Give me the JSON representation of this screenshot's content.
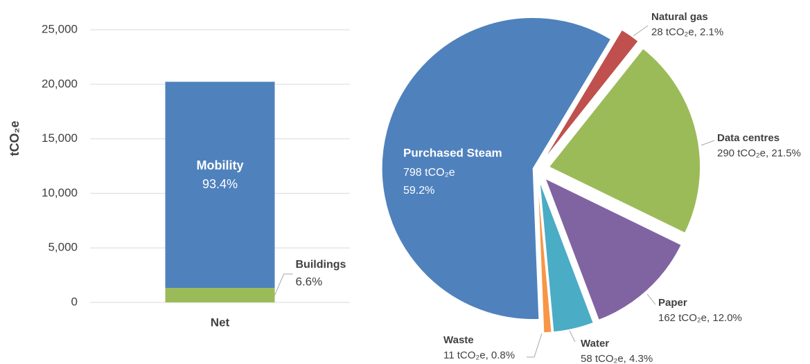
{
  "chart_data": [
    {
      "type": "bar",
      "stacked": true,
      "ylabel": "tCO₂e",
      "categories": [
        "Net"
      ],
      "series": [
        {
          "name": "Buildings",
          "color": "#9bbb59",
          "values": [
            1330
          ],
          "value_labels": [
            "6.6%"
          ]
        },
        {
          "name": "Mobility",
          "color": "#4f81bd",
          "values": [
            18900
          ],
          "value_labels": [
            "93.4%"
          ]
        }
      ],
      "ylim": [
        0,
        25000
      ],
      "yticks": [
        0,
        {
          "value": 5000,
          "label": "5,000"
        },
        {
          "value": 10000,
          "label": "10,000"
        },
        {
          "value": 15000,
          "label": "15,000"
        },
        {
          "value": 20000,
          "label": "20,000"
        },
        {
          "value": 25000,
          "label": "25,000"
        }
      ],
      "grid": true
    },
    {
      "type": "pie",
      "categories": [
        "Purchased Steam",
        "Natural gas",
        "Data centres",
        "Paper",
        "Water",
        "Waste"
      ],
      "values": [
        798,
        28,
        290,
        162,
        58,
        11
      ],
      "value_labels": [
        "798 tCO₂e",
        "28 tCO₂e, 2.1%",
        "290 tCO₂e, 21.5%",
        "162 tCO₂e, 12.0%",
        "58 tCO₂e, 4.3%",
        "11 tCO₂e, 0.8%"
      ],
      "percent_labels": [
        "59.2%"
      ],
      "colors": [
        "#4f81bd",
        "#c0504d",
        "#9bbb59",
        "#8064a2",
        "#4bacc6",
        "#f79646"
      ]
    }
  ]
}
